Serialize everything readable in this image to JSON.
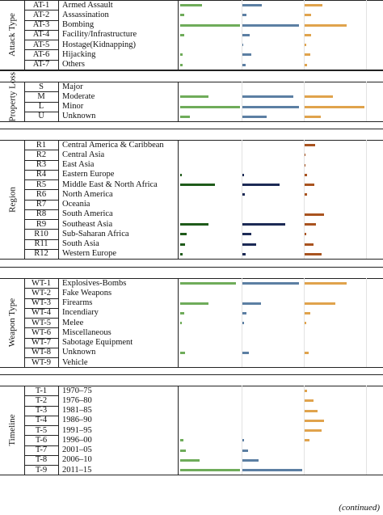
{
  "colors": {
    "col1_green_bright": "#6fac5a",
    "col1_green_dark": "#1f5b1a",
    "col2_blue": "#5c7fa3",
    "col2_navy": "#1c2a55",
    "col3_orange": "#e0a34c",
    "col3_brown": "#a9531f"
  },
  "groups": [
    {
      "label": "Attack Type",
      "rows": [
        {
          "code": "AT-1",
          "label": "Armed Assault",
          "v": [
            0.36,
            0.31,
            0.29
          ]
        },
        {
          "code": "AT-2",
          "label": "Assassination",
          "v": [
            0.07,
            0.06,
            0.1
          ]
        },
        {
          "code": "AT-3",
          "label": "Bombing",
          "v": [
            0.97,
            0.92,
            0.68
          ]
        },
        {
          "code": "AT-4",
          "label": "Facility/Infrastructure",
          "v": [
            0.06,
            0.12,
            0.1
          ]
        },
        {
          "code": "AT-5",
          "label": "Hostage(Kidnapping)",
          "v": [
            0.0,
            0.01,
            0.02
          ]
        },
        {
          "code": "AT-6",
          "label": "Hijacking",
          "v": [
            0.04,
            0.14,
            0.09
          ]
        },
        {
          "code": "AT-7",
          "label": "Others",
          "v": [
            0.04,
            0.05,
            0.04
          ]
        }
      ]
    },
    {
      "label": "Property Loss",
      "rows": [
        {
          "code": "S",
          "label": "Major",
          "v": [
            0.0,
            0.0,
            0.0
          ]
        },
        {
          "code": "M",
          "label": "Moderate",
          "v": [
            0.46,
            0.83,
            0.46
          ]
        },
        {
          "code": "L",
          "label": "Minor",
          "v": [
            0.97,
            0.92,
            0.98
          ]
        },
        {
          "code": "U",
          "label": "Unknown",
          "v": [
            0.16,
            0.39,
            0.26
          ]
        }
      ]
    },
    {
      "label": "Region",
      "rows": [
        {
          "code": "R1",
          "label": "Central America & Caribbean",
          "v": [
            0.0,
            0.0,
            0.17
          ]
        },
        {
          "code": "R2",
          "label": "Central Asia",
          "v": [
            0.0,
            0.0,
            0.01
          ]
        },
        {
          "code": "R3",
          "label": "East Asia",
          "v": [
            0.0,
            0.0,
            0.01
          ]
        },
        {
          "code": "R4",
          "label": "Eastern Europe",
          "v": [
            0.03,
            0.03,
            0.04
          ]
        },
        {
          "code": "R5",
          "label": "Middle East & North Africa",
          "v": [
            0.56,
            0.6,
            0.16
          ]
        },
        {
          "code": "R6",
          "label": "North America",
          "v": [
            0.0,
            0.04,
            0.04
          ]
        },
        {
          "code": "R7",
          "label": "Oceania",
          "v": [
            0.0,
            0.0,
            0.0
          ]
        },
        {
          "code": "R8",
          "label": "South America",
          "v": [
            0.0,
            0.0,
            0.31
          ]
        },
        {
          "code": "R9",
          "label": "Southeast Asia",
          "v": [
            0.46,
            0.7,
            0.19
          ]
        },
        {
          "code": "R10",
          "label": "Sub-Saharan Africa",
          "v": [
            0.1,
            0.15,
            0.03
          ]
        },
        {
          "code": "R11",
          "label": "South Asia",
          "v": [
            0.08,
            0.23,
            0.14
          ]
        },
        {
          "code": "R12",
          "label": "Western Europe",
          "v": [
            0.04,
            0.05,
            0.27
          ]
        }
      ]
    },
    {
      "label": "Weapon Type",
      "rows": [
        {
          "code": "WT-1",
          "label": "Explosives-Bombs",
          "v": [
            0.91,
            0.92,
            0.68
          ]
        },
        {
          "code": "WT-2",
          "label": "Fake Weapons",
          "v": [
            0.0,
            0.0,
            0.0
          ]
        },
        {
          "code": "WT-3",
          "label": "Firearms",
          "v": [
            0.46,
            0.3,
            0.5
          ]
        },
        {
          "code": "WT-4",
          "label": "Incendiary",
          "v": [
            0.06,
            0.07,
            0.09
          ]
        },
        {
          "code": "WT-5",
          "label": "Melee",
          "v": [
            0.02,
            0.03,
            0.02
          ]
        },
        {
          "code": "WT-6",
          "label": "Miscellaneous",
          "v": [
            0.0,
            0.0,
            0.0
          ]
        },
        {
          "code": "WT-7",
          "label": "Sabotage Equipment",
          "v": [
            0.0,
            0.0,
            0.0
          ]
        },
        {
          "code": "WT-8",
          "label": "Unknown",
          "v": [
            0.08,
            0.1,
            0.06
          ]
        },
        {
          "code": "WT-9",
          "label": "Vehicle",
          "v": [
            0.0,
            0.0,
            0.0
          ]
        }
      ]
    },
    {
      "label": "Timeline",
      "rows": [
        {
          "code": "T-1",
          "label": "1970–75",
          "v": [
            0.0,
            0.0,
            0.04
          ]
        },
        {
          "code": "T-2",
          "label": "1976–80",
          "v": [
            0.0,
            0.0,
            0.15
          ]
        },
        {
          "code": "T-3",
          "label": "1981–85",
          "v": [
            0.0,
            0.0,
            0.21
          ]
        },
        {
          "code": "T-4",
          "label": "1986–90",
          "v": [
            0.0,
            0.0,
            0.31
          ]
        },
        {
          "code": "T-5",
          "label": "1991–95",
          "v": [
            0.0,
            0.0,
            0.27
          ]
        },
        {
          "code": "T-6",
          "label": "1996–00",
          "v": [
            0.05,
            0.03,
            0.08
          ]
        },
        {
          "code": "T-7",
          "label": "2001–05",
          "v": [
            0.09,
            0.09,
            0.0
          ]
        },
        {
          "code": "T-8",
          "label": "2006–10",
          "v": [
            0.31,
            0.26,
            0.0
          ]
        },
        {
          "code": "T-9",
          "label": "2011–15",
          "v": [
            0.98,
            0.97,
            0.0
          ]
        }
      ]
    }
  ],
  "footer": "(continued)"
}
